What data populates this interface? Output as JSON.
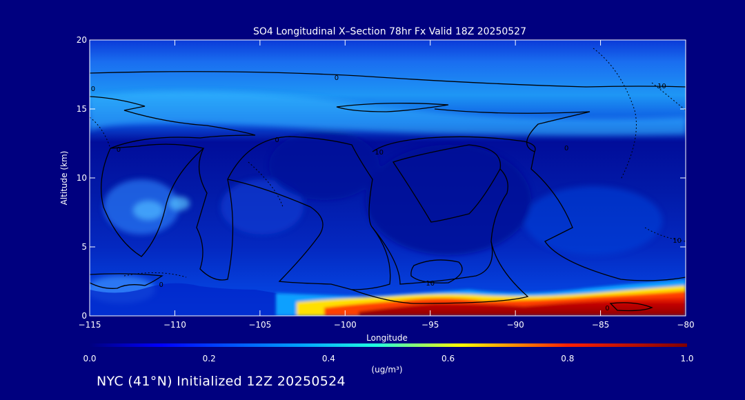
{
  "chart_data": {
    "type": "heatmap",
    "title": "SO4 Longitudinal X–Section 78hr  Fx Valid 18Z 20250527",
    "xlabel": "Longitude",
    "ylabel": "Altitude (km)",
    "xlim": [
      -115,
      -80
    ],
    "ylim": [
      0,
      20
    ],
    "x_ticks": [
      -115,
      -110,
      -105,
      -100,
      -95,
      -90,
      -85,
      -80
    ],
    "x_tick_labels": [
      "−115",
      "−110",
      "−105",
      "−100",
      "−95",
      "−90",
      "−85",
      "−80"
    ],
    "y_ticks": [
      0,
      5,
      10,
      15,
      20
    ],
    "y_tick_labels": [
      "0",
      "5",
      "10",
      "15",
      "20"
    ],
    "colorbar": {
      "label": "(ug/m³)",
      "range": [
        0.0,
        1.0
      ],
      "ticks": [
        0.0,
        0.2,
        0.4,
        0.6,
        0.8,
        1.0
      ],
      "tick_labels": [
        "0.0",
        "0.2",
        "0.4",
        "0.6",
        "0.8",
        "1.0"
      ]
    },
    "contour_labels": [
      {
        "text": "0",
        "x": -114.8,
        "y": 16.5
      },
      {
        "text": "0",
        "x": -113.3,
        "y": 12.1
      },
      {
        "text": "0",
        "x": -104.0,
        "y": 12.8
      },
      {
        "text": "0",
        "x": -100.5,
        "y": 17.3
      },
      {
        "text": "10",
        "x": -98.0,
        "y": 11.9
      },
      {
        "text": "10",
        "x": -95.0,
        "y": 2.4
      },
      {
        "text": "0",
        "x": -87.0,
        "y": 12.2
      },
      {
        "text": "10",
        "x": -81.4,
        "y": 16.7
      },
      {
        "text": "10",
        "x": -80.5,
        "y": 5.5
      },
      {
        "text": "0",
        "x": -84.6,
        "y": 0.6
      },
      {
        "text": "0",
        "x": -110.8,
        "y": 2.3
      }
    ],
    "high_concentration_region": {
      "longitude_range": [
        -98,
        -80
      ],
      "altitude_range": [
        0,
        1.5
      ],
      "max_value": 1.0
    }
  },
  "footer_text": "NYC (41°N) Initialized 12Z 20250524",
  "colors": {
    "background": "#00007f",
    "colormap": [
      "#00007f",
      "#0000ff",
      "#00c8ff",
      "#ffff00",
      "#ff0000",
      "#7f0000"
    ]
  }
}
